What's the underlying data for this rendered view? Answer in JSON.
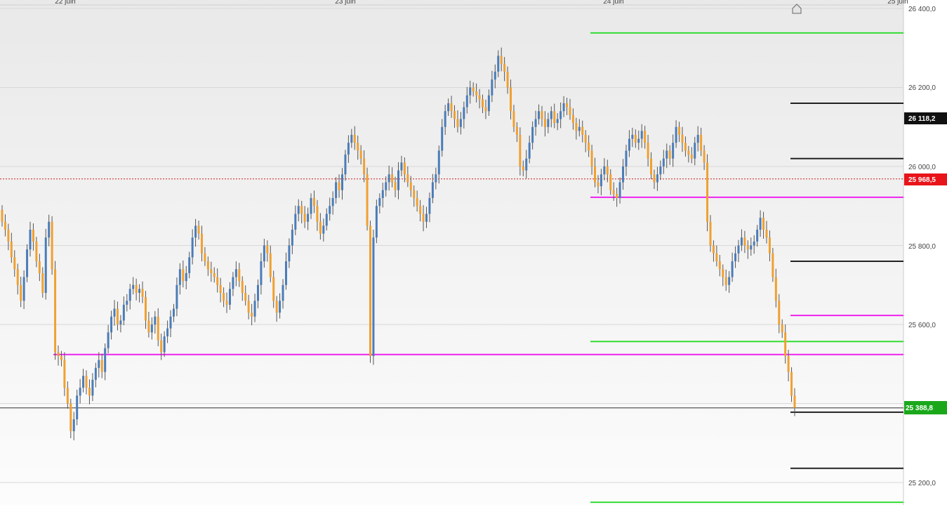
{
  "chart_data": {
    "type": "candlestick",
    "x_ticks": [
      "22 juin",
      "23 juin",
      "24 juin",
      "25 juin"
    ],
    "y_ticks": [
      "26 400,0",
      "26 200,0",
      "26 000,0",
      "25 800,0",
      "25 600,0",
      "25 200,0"
    ],
    "ylim": [
      25200,
      26400
    ],
    "grid": true,
    "price_badges": [
      {
        "value": 26118.2,
        "label": "26 118,2",
        "color": "#111111"
      },
      {
        "value": 25968.5,
        "label": "25 968,5",
        "color": "#e8141a"
      },
      {
        "value": 25388.8,
        "label": "25 388,8",
        "color": "#1aa81a"
      }
    ],
    "reference_lines": [
      {
        "value": 25968.5,
        "style": "dotted",
        "color": "#d11a1a"
      },
      {
        "value": 25388.8,
        "style": "solid",
        "color": "#333333"
      }
    ],
    "levels": [
      {
        "value": 26338,
        "color": "#33dd33"
      },
      {
        "value": 26160,
        "color": "#222222"
      },
      {
        "value": 26020,
        "color": "#222222"
      },
      {
        "value": 25922,
        "color": "#ee22ee"
      },
      {
        "value": 25760,
        "color": "#222222"
      },
      {
        "value": 25623,
        "color": "#ee22ee"
      },
      {
        "value": 25557,
        "color": "#33dd33"
      },
      {
        "value": 25524,
        "color": "#ee22ee"
      },
      {
        "value": 25378,
        "color": "#222222"
      },
      {
        "value": 25236,
        "color": "#222222"
      },
      {
        "value": 25150,
        "color": "#33dd33"
      }
    ],
    "candle_colors": {
      "up": "#4a7cb8",
      "down": "#f0a030"
    },
    "series": [
      {
        "close": [
          25860,
          25840,
          25810,
          25770,
          25740,
          25700,
          25660,
          25720,
          25790,
          25840,
          25810,
          25760,
          25730,
          25680,
          25820,
          25860,
          25740,
          25530,
          25520,
          25510,
          25440,
          25400,
          25330,
          25360,
          25420,
          25440,
          25470,
          25440,
          25420,
          25460,
          25490,
          25510,
          25480,
          25540,
          25580,
          25620,
          25640,
          25600,
          25610,
          25650,
          25660,
          25690,
          25700,
          25680,
          25690,
          25670,
          25610,
          25580,
          25600,
          25620,
          25560,
          25530,
          25570,
          25590,
          25620,
          25640,
          25700,
          25740,
          25710,
          25730,
          25770,
          25820,
          25850,
          25830,
          25780,
          25760,
          25740,
          25730,
          25720,
          25700,
          25680,
          25660,
          25650,
          25690,
          25720,
          25740,
          25710,
          25680,
          25660,
          25630,
          25620,
          25660,
          25700,
          25760,
          25800,
          25780,
          25720,
          25660,
          25630,
          25660,
          25700,
          25760,
          25800,
          25840,
          25880,
          25900,
          25880,
          25860,
          25880,
          25920,
          25900,
          25860,
          25830,
          25850,
          25880,
          25900,
          25920,
          25960,
          25940,
          25980,
          26030,
          26060,
          26080,
          26060,
          26040,
          26020,
          25980,
          25850,
          25520,
          25820,
          25900,
          25920,
          25940,
          25960,
          25980,
          25960,
          25940,
          25990,
          26010,
          25980,
          25960,
          25940,
          25920,
          25900,
          25880,
          25860,
          25880,
          25920,
          25960,
          25980,
          26040,
          26100,
          26140,
          26160,
          26140,
          26120,
          26100,
          26120,
          26150,
          26180,
          26200,
          26190,
          26180,
          26170,
          26150,
          26140,
          26180,
          26220,
          26240,
          26280,
          26260,
          26240,
          26200,
          26140,
          26100,
          26080,
          26000,
          25990,
          26020,
          26060,
          26100,
          26120,
          26140,
          26120,
          26100,
          26120,
          26140,
          26110,
          26120,
          26140,
          26160,
          26150,
          26130,
          26110,
          26090,
          26100,
          26080,
          26060,
          26040,
          26000,
          25960,
          25950,
          25980,
          26000,
          25980,
          25940,
          25930,
          25920,
          25960,
          26000,
          26040,
          26070,
          26080,
          26060,
          26070,
          26090,
          26060,
          26020,
          25980,
          25960,
          25980,
          26000,
          26020,
          26040,
          26020,
          26060,
          26100,
          26080,
          26060,
          26040,
          26030,
          26020,
          26060,
          26080,
          26040,
          26010,
          25860,
          25800,
          25780,
          25760,
          25740,
          25720,
          25700,
          25720,
          25760,
          25780,
          25800,
          25820,
          25800,
          25790,
          25800,
          25810,
          25840,
          25870,
          25840,
          25820,
          25780,
          25720,
          25660,
          25600,
          25580,
          25520,
          25480,
          25420,
          25389
        ]
      }
    ]
  }
}
